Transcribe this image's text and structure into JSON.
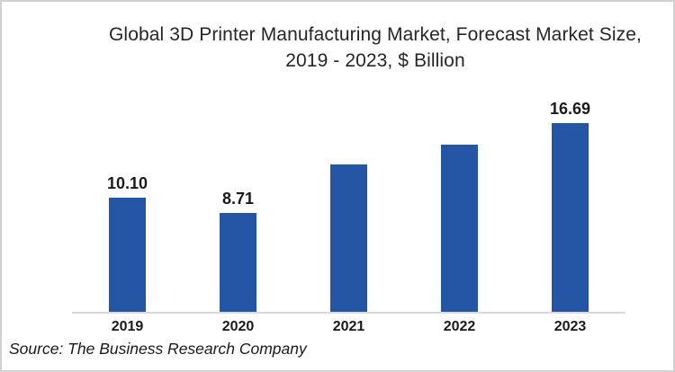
{
  "chart_data": {
    "type": "bar",
    "title": "Global 3D Printer Manufacturing Market, Forecast Market Size, 2019 - 2023, $ Billion",
    "categories": [
      "2019",
      "2020",
      "2021",
      "2022",
      "2023"
    ],
    "values": [
      10.1,
      8.71,
      13.0,
      14.8,
      16.69
    ],
    "data_labels": [
      "10.10",
      "8.71",
      "",
      "",
      "16.69"
    ],
    "unit": "$ Billion",
    "xlabel": "",
    "ylabel": "",
    "ylim": [
      0,
      18
    ],
    "grid": false,
    "legend": false,
    "bar_color": "#2456A5",
    "axis_color": "#d9d9d9",
    "source": "Source: The Business Research Company"
  }
}
